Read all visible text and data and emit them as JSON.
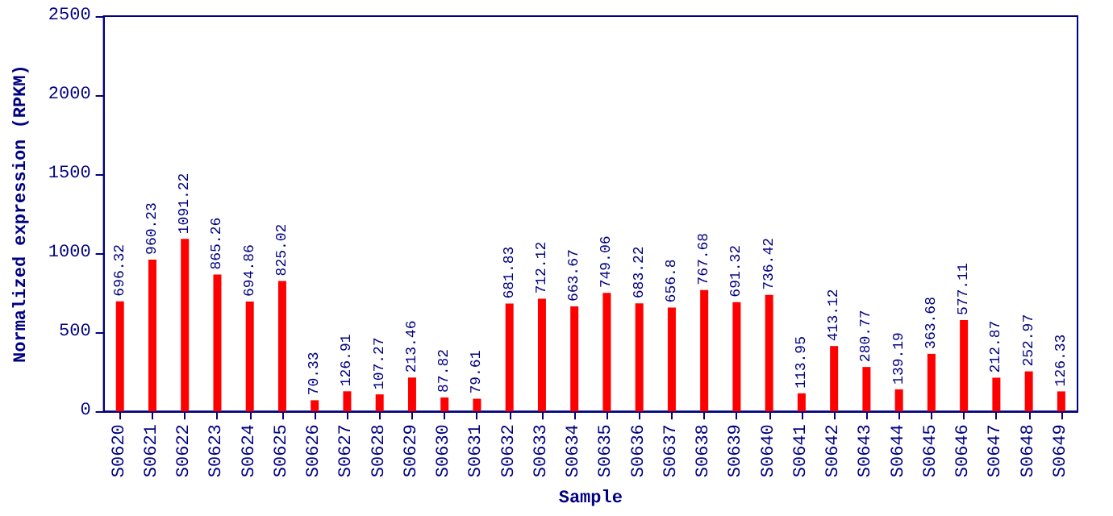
{
  "chart_data": {
    "type": "bar",
    "xlabel": "Sample",
    "ylabel": "Normalized expression (RPKM)",
    "categories": [
      "S0620",
      "S0621",
      "S0622",
      "S0623",
      "S0624",
      "S0625",
      "S0626",
      "S0627",
      "S0628",
      "S0629",
      "S0630",
      "S0631",
      "S0632",
      "S0633",
      "S0634",
      "S0635",
      "S0636",
      "S0637",
      "S0638",
      "S0639",
      "S0640",
      "S0641",
      "S0642",
      "S0643",
      "S0644",
      "S0645",
      "S0646",
      "S0647",
      "S0648",
      "S0649"
    ],
    "values": [
      696.32,
      960.23,
      1091.22,
      865.26,
      694.86,
      825.02,
      70.33,
      126.91,
      107.27,
      213.46,
      87.82,
      79.61,
      681.83,
      712.12,
      663.67,
      749.06,
      683.22,
      656.8,
      767.68,
      691.32,
      736.42,
      113.95,
      413.12,
      280.77,
      139.19,
      363.68,
      577.11,
      212.87,
      252.97,
      126.33
    ],
    "color": "#ff0000",
    "ylim": [
      0,
      2500
    ],
    "yticks": [
      0,
      500,
      1000,
      1500,
      2000,
      2500
    ],
    "grid": false,
    "data_labels": true
  }
}
